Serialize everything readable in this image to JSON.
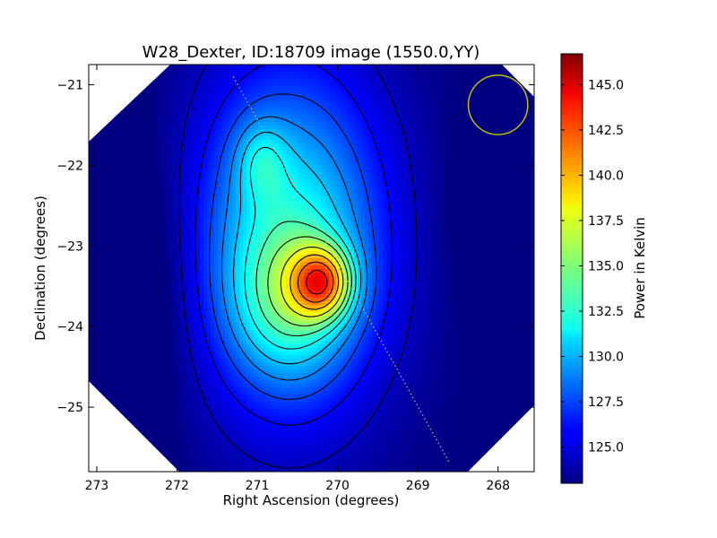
{
  "chart_data": {
    "type": "heatmap",
    "title": "W28_Dexter, ID:18709 image (1550.0,YY)",
    "xlabel": "Right Ascension (degrees)",
    "ylabel": "Declination (degrees)",
    "xlim": [
      273.1,
      267.55
    ],
    "ylim": [
      -25.8,
      -20.75
    ],
    "x_ticks": [
      273,
      272,
      271,
      270,
      269,
      268
    ],
    "x_tick_labels": [
      "273",
      "272",
      "271",
      "270",
      "269",
      "268"
    ],
    "y_ticks": [
      -21,
      -22,
      -23,
      -24,
      -25
    ],
    "y_tick_labels": [
      "−21",
      "−22",
      "−23",
      "−24",
      "−25"
    ],
    "colorbar": {
      "label": "Power in Kelvin",
      "min": 123.0,
      "max": 146.7,
      "ticks": [
        125.0,
        127.5,
        130.0,
        132.5,
        135.0,
        137.5,
        140.0,
        142.5,
        145.0
      ],
      "tick_labels": [
        "125.0",
        "127.5",
        "130.0",
        "132.5",
        "135.0",
        "137.5",
        "140.0",
        "142.5",
        "145.0"
      ],
      "colormap": "jet"
    },
    "peaks": [
      {
        "ra": 270.2,
        "dec": -23.42,
        "value": 146.5
      },
      {
        "ra": 270.98,
        "dec": -21.9,
        "value": 134.5
      }
    ],
    "contour_levels": [
      124.5,
      126,
      127.5,
      129,
      130.5,
      132,
      133.5,
      135,
      137,
      139,
      141,
      143,
      145
    ],
    "beam_circle": {
      "ra": 268.0,
      "dec": -21.25,
      "radius_deg": 0.37,
      "color": "#bfbf00"
    },
    "dotted_line": {
      "from": [
        271.3,
        -20.9
      ],
      "to": [
        268.6,
        -25.7
      ],
      "color": "#bcbc8a"
    },
    "grid": false
  }
}
